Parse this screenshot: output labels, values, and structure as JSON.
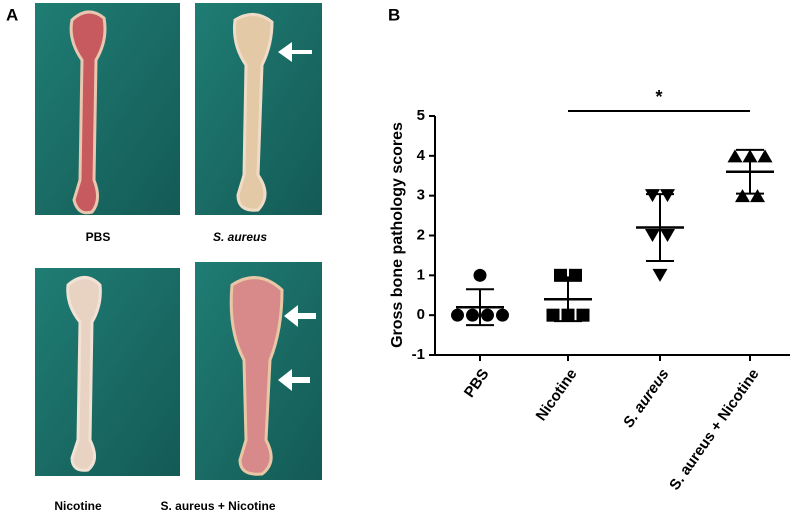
{
  "panel_letters": [
    "A",
    "B"
  ],
  "panel_a": {
    "labels": [
      "PBS",
      "S. aureus",
      "Nicotine",
      "S. aureus + Nicotine"
    ]
  },
  "chart_data": {
    "type": "dot",
    "ylabel": "Gross bone pathology scores",
    "categories": [
      "PBS",
      "Nicotine",
      "S. aureus",
      "S. aureus + Nicotine"
    ],
    "values": [
      [
        0,
        0,
        0,
        0,
        1
      ],
      [
        0,
        0,
        0,
        1,
        1
      ],
      [
        1,
        2,
        2,
        3,
        3
      ],
      [
        3,
        3,
        4,
        4,
        4
      ]
    ],
    "means": [
      0.2,
      0.4,
      2.2,
      3.6
    ],
    "sd": [
      0.45,
      0.55,
      0.84,
      0.55
    ],
    "markers": [
      "circle",
      "square",
      "triangle",
      "triangle-down"
    ],
    "color": "#000000",
    "ylim": [
      -1,
      5
    ],
    "yticks": [
      -1,
      0,
      1,
      2,
      3,
      4,
      5
    ],
    "annotations": [
      {
        "text": "*",
        "from": 1,
        "to": 3
      }
    ]
  }
}
